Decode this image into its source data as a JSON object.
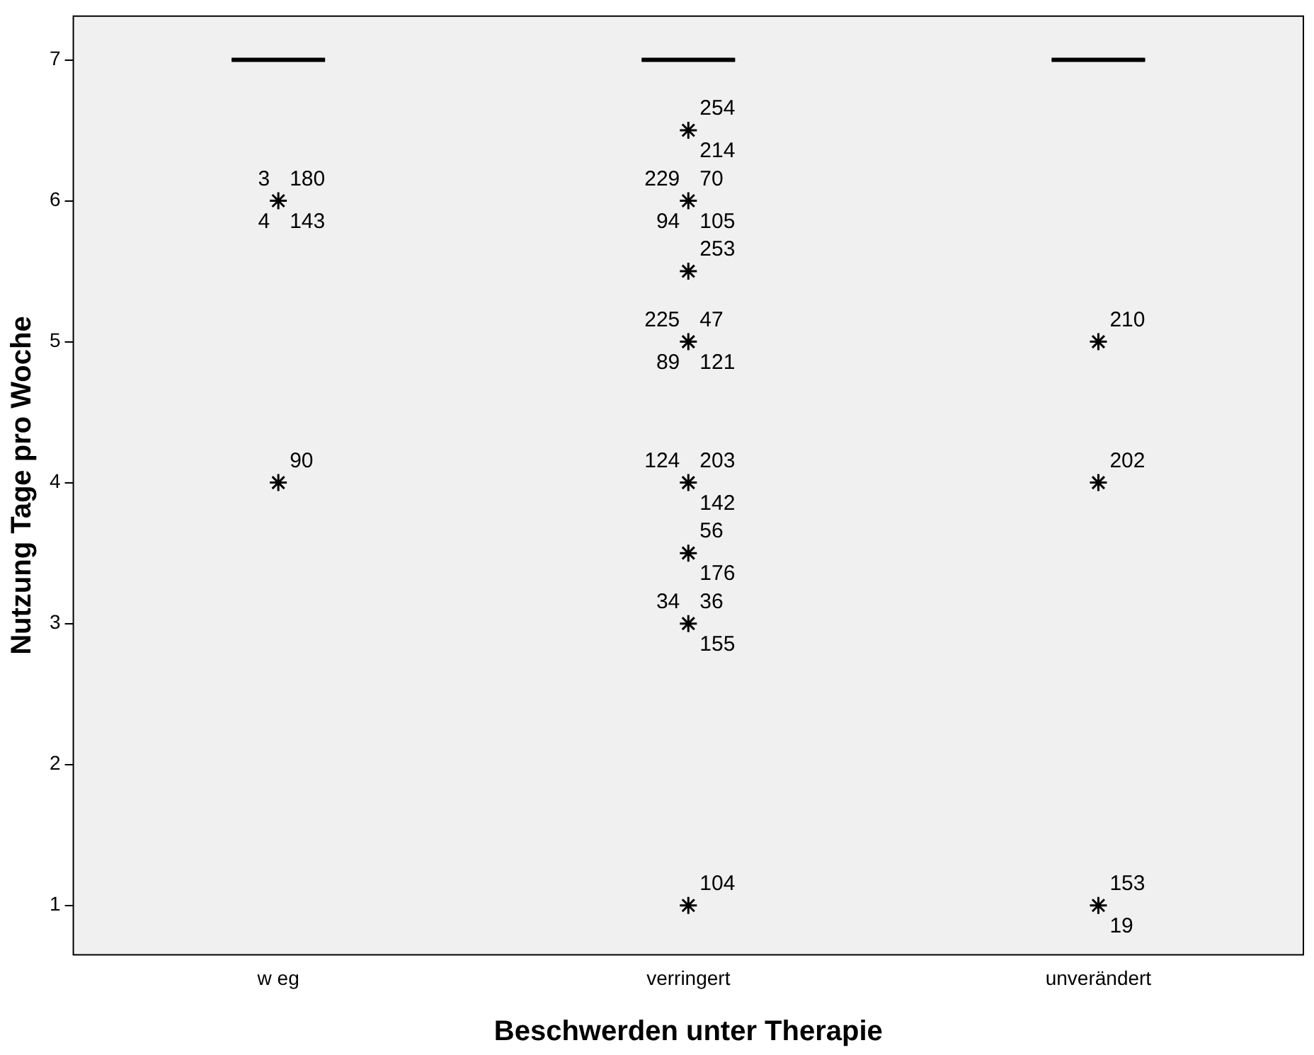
{
  "chart_data": {
    "type": "box",
    "xlabel": "Beschwerden unter Therapie",
    "ylabel": "Nutzung Tage pro Woche",
    "categories": [
      "w eg",
      "verringert",
      "unverändert"
    ],
    "boxes": [
      {
        "low": 7,
        "q1": 7,
        "median": 7,
        "q3": 7,
        "high": 7
      },
      {
        "low": 7,
        "q1": 7,
        "median": 7,
        "q3": 7,
        "high": 7
      },
      {
        "low": 7,
        "q1": 7,
        "median": 7,
        "q3": 7,
        "high": 7
      }
    ],
    "series": [
      {
        "type": "scatter",
        "color": "#000000",
        "x": [
          "w eg",
          "w eg",
          "verringert",
          "verringert",
          "verringert",
          "verringert",
          "verringert",
          "verringert",
          "verringert",
          "verringert",
          "unverändert",
          "unverändert",
          "unverändert"
        ],
        "values": [
          6,
          4,
          6.5,
          6,
          5.5,
          5,
          4,
          3.5,
          3,
          1,
          5,
          4,
          1
        ]
      }
    ],
    "marker": "cross",
    "grid": false,
    "legend": false,
    "ylim": [
      0.65,
      7.31
    ],
    "yticks": [
      1,
      2,
      3,
      4,
      5,
      6,
      7
    ],
    "annotations": [
      {
        "text": "180",
        "x": "w eg",
        "y": 6
      },
      {
        "text": "143",
        "x": "w eg",
        "y": 6
      },
      {
        "text": "3",
        "x": "w eg",
        "y": 6
      },
      {
        "text": "4",
        "x": "w eg",
        "y": 6
      },
      {
        "text": "90",
        "x": "w eg",
        "y": 4
      },
      {
        "text": "254",
        "x": "verringert",
        "y": 6.5
      },
      {
        "text": "214",
        "x": "verringert",
        "y": 6.5
      },
      {
        "text": "70",
        "x": "verringert",
        "y": 6
      },
      {
        "text": "105",
        "x": "verringert",
        "y": 6
      },
      {
        "text": "229",
        "x": "verringert",
        "y": 6
      },
      {
        "text": "94",
        "x": "verringert",
        "y": 6
      },
      {
        "text": "253",
        "x": "verringert",
        "y": 5.5
      },
      {
        "text": "47",
        "x": "verringert",
        "y": 5
      },
      {
        "text": "121",
        "x": "verringert",
        "y": 5
      },
      {
        "text": "225",
        "x": "verringert",
        "y": 5
      },
      {
        "text": "89",
        "x": "verringert",
        "y": 5
      },
      {
        "text": "203",
        "x": "verringert",
        "y": 4
      },
      {
        "text": "142",
        "x": "verringert",
        "y": 4
      },
      {
        "text": "124",
        "x": "verringert",
        "y": 4
      },
      {
        "text": "56",
        "x": "verringert",
        "y": 3.5
      },
      {
        "text": "176",
        "x": "verringert",
        "y": 3.5
      },
      {
        "text": "36",
        "x": "verringert",
        "y": 3
      },
      {
        "text": "155",
        "x": "verringert",
        "y": 3
      },
      {
        "text": "34",
        "x": "verringert",
        "y": 3
      },
      {
        "text": "104",
        "x": "verringert",
        "y": 1
      },
      {
        "text": "210",
        "x": "unverändert",
        "y": 5
      },
      {
        "text": "202",
        "x": "unverändert",
        "y": 4
      },
      {
        "text": "153",
        "x": "unverändert",
        "y": 1
      },
      {
        "text": "19",
        "x": "unverändert",
        "y": 1
      }
    ]
  }
}
